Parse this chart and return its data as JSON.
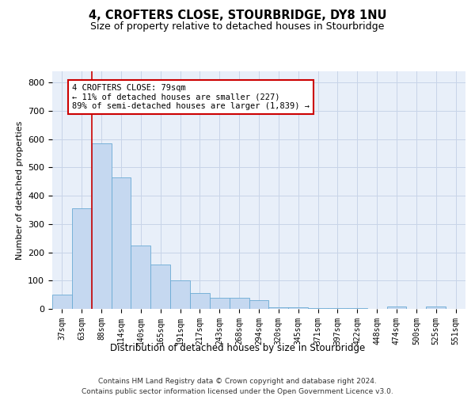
{
  "title": "4, CROFTERS CLOSE, STOURBRIDGE, DY8 1NU",
  "subtitle": "Size of property relative to detached houses in Stourbridge",
  "xlabel": "Distribution of detached houses by size in Stourbridge",
  "ylabel": "Number of detached properties",
  "categories": [
    "37sqm",
    "63sqm",
    "88sqm",
    "114sqm",
    "140sqm",
    "165sqm",
    "191sqm",
    "217sqm",
    "243sqm",
    "268sqm",
    "294sqm",
    "320sqm",
    "345sqm",
    "371sqm",
    "397sqm",
    "422sqm",
    "448sqm",
    "474sqm",
    "500sqm",
    "525sqm",
    "551sqm"
  ],
  "values": [
    50,
    355,
    585,
    465,
    225,
    158,
    100,
    55,
    40,
    38,
    30,
    6,
    6,
    2,
    2,
    2,
    1,
    8,
    1,
    8,
    1
  ],
  "bar_color": "#c5d8f0",
  "bar_edge_color": "#6aaad4",
  "grid_color": "#c8d4e8",
  "background_color": "#e8eff9",
  "vline_x": 1.5,
  "vline_color": "#cc0000",
  "annotation_text": "4 CROFTERS CLOSE: 79sqm\n← 11% of detached houses are smaller (227)\n89% of semi-detached houses are larger (1,839) →",
  "annotation_box_color": "#cc0000",
  "ylim": [
    0,
    840
  ],
  "yticks": [
    0,
    100,
    200,
    300,
    400,
    500,
    600,
    700,
    800
  ],
  "footer1": "Contains HM Land Registry data © Crown copyright and database right 2024.",
  "footer2": "Contains public sector information licensed under the Open Government Licence v3.0."
}
